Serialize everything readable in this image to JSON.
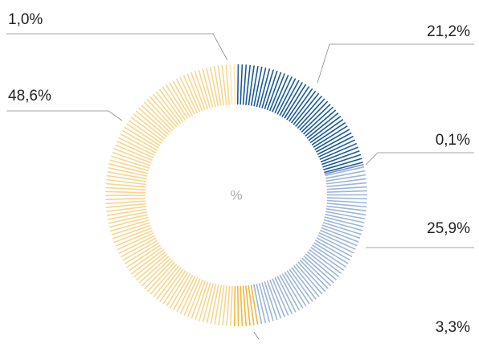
{
  "chart_data": {
    "type": "donut",
    "center_label": "%",
    "categories": [
      null,
      null,
      null,
      null,
      null,
      null
    ],
    "values": [
      21.2,
      0.1,
      25.9,
      3.3,
      48.6,
      1.0
    ],
    "value_labels": [
      "21,2%",
      "0,1%",
      "25,9%",
      "3,3%",
      "48,6%",
      "1,0%"
    ],
    "colors": [
      "#1b5a94",
      "#6d8fc0",
      "#9cb5d9",
      "#f0b73e",
      "#f9d58e",
      "#fce7bd"
    ]
  }
}
